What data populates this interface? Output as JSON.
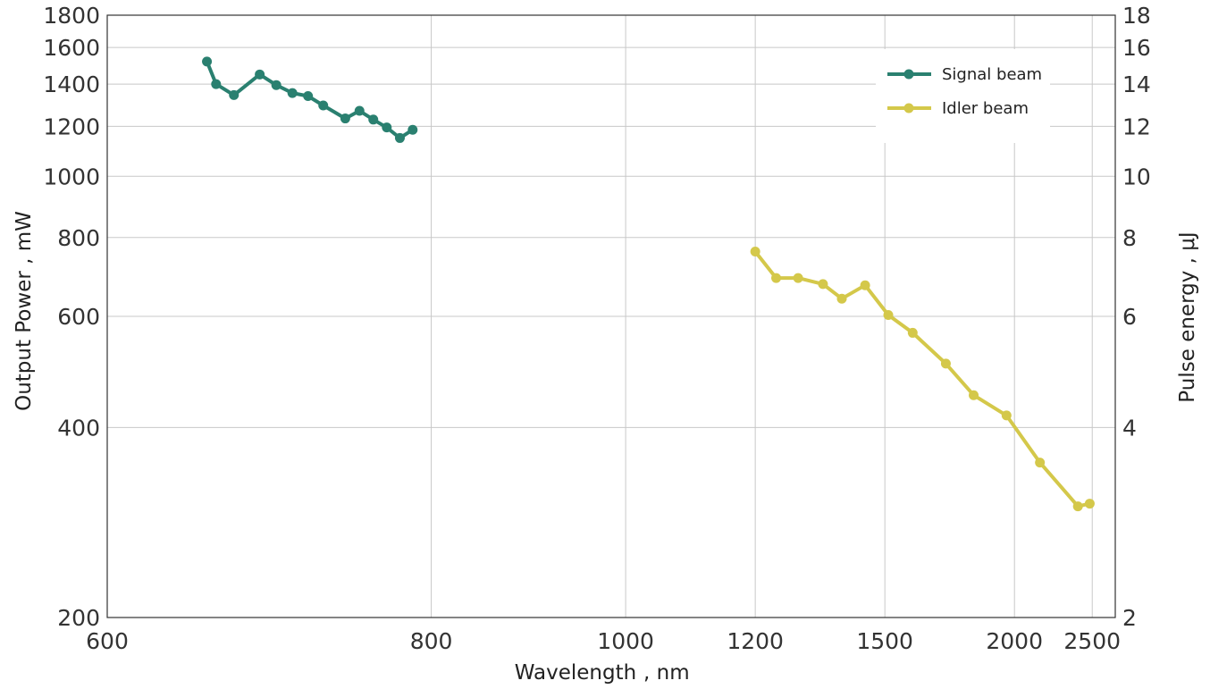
{
  "chart_data": {
    "type": "line",
    "xlabel": "Wavelength",
    "xlabel_unit": ", nm",
    "ylabel": "Output Power , mW",
    "y2label": "Pulse energy , μJ",
    "x_scale": "reciprocal",
    "y_scale": "log",
    "xlim": [
      600,
      2700
    ],
    "ylim": [
      200,
      1800
    ],
    "y2lim": [
      2,
      18
    ],
    "x_ticks": [
      600,
      800,
      1000,
      1200,
      1500,
      2000,
      2500
    ],
    "y_ticks": [
      200,
      400,
      600,
      800,
      1000,
      1200,
      1400,
      1600,
      1800
    ],
    "y2_ticks": [
      2,
      4,
      6,
      8,
      10,
      12,
      14,
      16,
      18
    ],
    "x_tick_labels": [
      "600",
      "800",
      "1000",
      "1200",
      "1500",
      "2000",
      "2500"
    ],
    "y_tick_labels": [
      "200",
      "400",
      "600",
      "800",
      "1000",
      "1200",
      "1400",
      "1600",
      "1800"
    ],
    "y2_tick_labels": [
      "2",
      "4",
      "6",
      "8",
      "10",
      "12",
      "14",
      "16",
      "18"
    ],
    "grid": true,
    "legend_position": "top-right",
    "series": [
      {
        "name": "Signal beam",
        "color": "#2a8070",
        "x": [
          650,
          655,
          665,
          680,
          690,
          700,
          710,
          720,
          735,
          745,
          755,
          765,
          775,
          785
        ],
        "y": [
          1520,
          1400,
          1345,
          1450,
          1395,
          1355,
          1340,
          1295,
          1235,
          1270,
          1230,
          1195,
          1150,
          1185
        ]
      },
      {
        "name": "Idler beam",
        "color": "#d4c84a",
        "x": [
          1200,
          1240,
          1285,
          1340,
          1385,
          1445,
          1510,
          1585,
          1700,
          1810,
          1960,
          2140,
          2390,
          2480
        ],
        "y": [
          760,
          690,
          690,
          675,
          640,
          672,
          603,
          565,
          505,
          450,
          418,
          352,
          300,
          303
        ]
      }
    ]
  }
}
